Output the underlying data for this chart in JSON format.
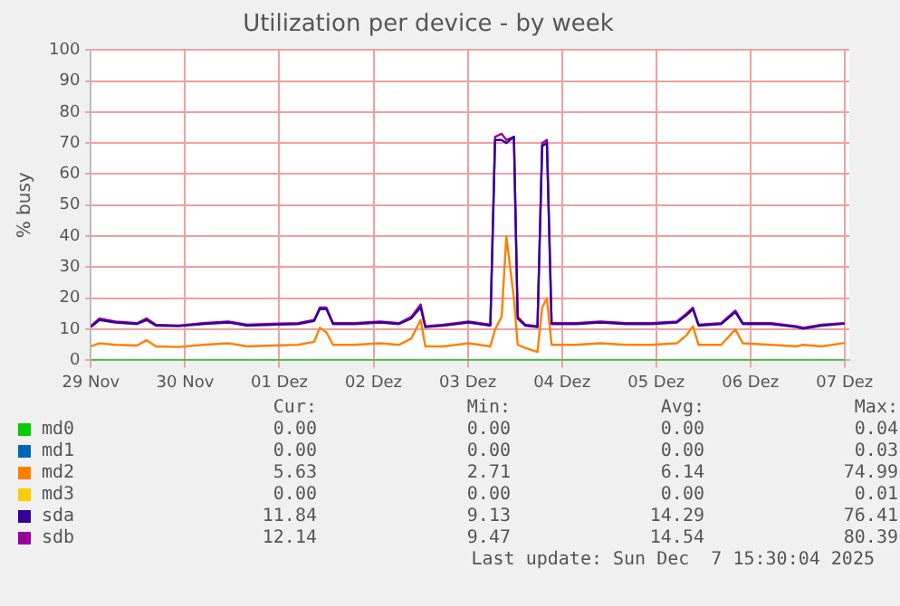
{
  "chart_data": {
    "type": "line",
    "title": "Utilization per device - by week",
    "ylabel": "% busy",
    "x": [
      "2025-11-29T00:00",
      "2025-11-29T02:10",
      "2025-11-29T06:14",
      "2025-11-29T11:46",
      "2025-11-29T14:10",
      "2025-11-29T16:34",
      "2025-11-29T22:19",
      "2025-11-30T04:34",
      "2025-11-30T11:02",
      "2025-11-30T15:50",
      "2025-11-30T22:19",
      "2025-12-01T04:48",
      "2025-12-01T08:53",
      "2025-12-01T10:19",
      "2025-12-01T12:00",
      "2025-12-01T13:41",
      "2025-12-01T19:12",
      "2025-12-02T01:41",
      "2025-12-02T06:29",
      "2025-12-02T09:36",
      "2025-12-02T12:00",
      "2025-12-02T13:12",
      "2025-12-02T17:46",
      "2025-12-03T00:14",
      "2025-12-03T05:46",
      "2025-12-03T06:58",
      "2025-12-03T08:38",
      "2025-12-03T09:50",
      "2025-12-03T11:46",
      "2025-12-03T12:43",
      "2025-12-03T14:38",
      "2025-12-03T17:46",
      "2025-12-03T18:58",
      "2025-12-03T20:10",
      "2025-12-03T21:22",
      "2025-12-04T03:36",
      "2025-12-04T09:50",
      "2025-12-04T16:19",
      "2025-12-04T22:48",
      "2025-12-05T05:17",
      "2025-12-05T07:41",
      "2025-12-05T09:22",
      "2025-12-05T10:48",
      "2025-12-05T16:34",
      "2025-12-05T20:10",
      "2025-12-05T22:05",
      "2025-12-06T05:17",
      "2025-12-06T11:46",
      "2025-12-06T13:26",
      "2025-12-06T18:14",
      "2025-12-07T00:00"
    ],
    "series": [
      {
        "name": "md0",
        "color": "#00cc00",
        "values": [
          0,
          0,
          0,
          0,
          0,
          0,
          0,
          0,
          0,
          0,
          0,
          0,
          0,
          0,
          0,
          0,
          0,
          0,
          0,
          0,
          0,
          0,
          0,
          0,
          0,
          0,
          0,
          0,
          0,
          0,
          0,
          0,
          0,
          0,
          0,
          0,
          0,
          0,
          0,
          0,
          0,
          0,
          0,
          0,
          0,
          0,
          0,
          0,
          0,
          0,
          0
        ]
      },
      {
        "name": "md1",
        "color": "#0066b3",
        "values": [
          null,
          null,
          null,
          null,
          null,
          null,
          null,
          null,
          null,
          null,
          null,
          null,
          null,
          null,
          null,
          null,
          null,
          null,
          null,
          null,
          null,
          null,
          null,
          null,
          null,
          null,
          null,
          null,
          null,
          null,
          null,
          null,
          null,
          null,
          null,
          null,
          null,
          null,
          null,
          null,
          null,
          null,
          null,
          null,
          null,
          null,
          null,
          null,
          null,
          null,
          null
        ]
      },
      {
        "name": "md2",
        "color": "#ff8000",
        "values": [
          4.5,
          5.5,
          5,
          4.8,
          6.5,
          4.5,
          4.3,
          5,
          5.5,
          4.5,
          4.8,
          5,
          6,
          10.5,
          9,
          5,
          5,
          5.5,
          5,
          7,
          13,
          4.5,
          4.5,
          5.5,
          4.5,
          10,
          14,
          40,
          20,
          5,
          4,
          2.7,
          17,
          20,
          5,
          5,
          5.5,
          5,
          5,
          5.5,
          8,
          11,
          5,
          5,
          10,
          5.5,
          5,
          4.5,
          5,
          4.5,
          5.6
        ]
      },
      {
        "name": "md3",
        "color": "#ffcc00",
        "values": [
          null,
          null,
          null,
          null,
          null,
          null,
          null,
          null,
          null,
          null,
          null,
          null,
          null,
          null,
          null,
          null,
          null,
          null,
          null,
          null,
          null,
          null,
          null,
          null,
          null,
          null,
          null,
          null,
          null,
          null,
          null,
          null,
          null,
          null,
          null,
          null,
          null,
          null,
          null,
          null,
          null,
          null,
          null,
          null,
          null,
          null,
          null,
          null,
          null,
          null,
          null
        ]
      },
      {
        "name": "sda",
        "color": "#330099",
        "values": [
          10.7,
          13,
          12.2,
          11.7,
          13,
          11.2,
          11,
          11.7,
          12.2,
          11.2,
          11.5,
          11.7,
          12.7,
          16.5,
          16.5,
          11.7,
          11.7,
          12.2,
          11.7,
          13.5,
          17,
          10.7,
          11.2,
          12.2,
          11.2,
          71,
          71,
          70,
          72,
          13.5,
          11.2,
          10.7,
          69,
          70,
          11.7,
          11.7,
          12.2,
          11.7,
          11.7,
          12.2,
          14.5,
          16.5,
          11.2,
          11.7,
          15.5,
          11.7,
          11.7,
          10.7,
          10.2,
          11.2,
          11.8
        ]
      },
      {
        "name": "sdb",
        "color": "#990099",
        "values": [
          11,
          13.5,
          12.5,
          12,
          13.5,
          11.5,
          11.2,
          12,
          12.5,
          11.5,
          11.8,
          12,
          13,
          17,
          17,
          12,
          12,
          12.5,
          12,
          14,
          18,
          11,
          11.5,
          12.5,
          11.5,
          72,
          73,
          71,
          72,
          14,
          11.5,
          11,
          70,
          71,
          12,
          12,
          12.5,
          12,
          12,
          12.5,
          15,
          17,
          11.5,
          12,
          16,
          12,
          12,
          11,
          10.5,
          11.5,
          12
        ]
      }
    ],
    "xlim": [
      "2025-11-29T00:00",
      "2025-12-07T01:12"
    ],
    "xticks": [
      {
        "value": "2025-11-29",
        "label": "29 Nov"
      },
      {
        "value": "2025-11-30",
        "label": "30 Nov"
      },
      {
        "value": "2025-12-01",
        "label": "01 Dez"
      },
      {
        "value": "2025-12-02",
        "label": "02 Dez"
      },
      {
        "value": "2025-12-03",
        "label": "03 Dez"
      },
      {
        "value": "2025-12-04",
        "label": "04 Dez"
      },
      {
        "value": "2025-12-05",
        "label": "05 Dez"
      },
      {
        "value": "2025-12-06",
        "label": "06 Dez"
      },
      {
        "value": "2025-12-07",
        "label": "07 Dez"
      }
    ],
    "ylim": [
      0,
      100
    ],
    "yticks": [
      0,
      10,
      20,
      30,
      40,
      50,
      60,
      70,
      80,
      90,
      100
    ],
    "grid": true,
    "legend": "bottom",
    "marker": "none",
    "line_style": "solid",
    "annotations": [
      "Cur:",
      "Min:",
      "Avg:",
      "Max:",
      "0.00",
      "0.00",
      "0.00",
      "0.04",
      "0.00",
      "0.00",
      "0.00",
      "0.03",
      "5.63",
      "2.71",
      "6.14",
      "74.99",
      "0.00",
      "0.00",
      "0.00",
      "0.01",
      "11.84",
      "9.13",
      "14.29",
      "76.41",
      "12.14",
      "9.47",
      "14.54",
      "80.39",
      "Last update: Sun Dec  7 15:30:04 2025"
    ]
  }
}
